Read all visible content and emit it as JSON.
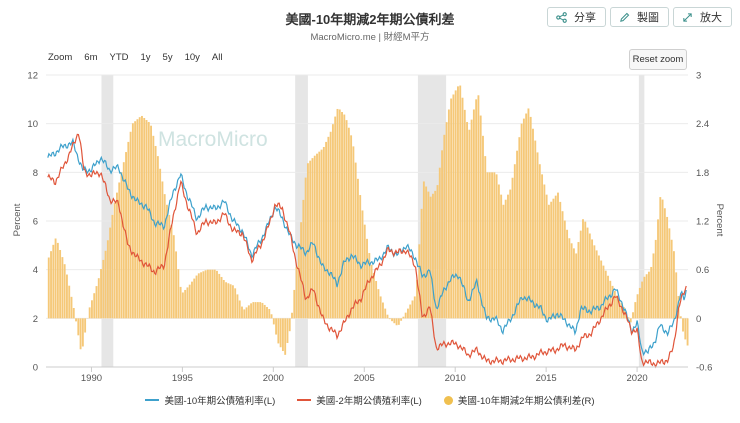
{
  "header": {
    "title": "美國-10年期減2年期公債利差",
    "subtitle": "MacroMicro.me | 財經M平方"
  },
  "toolbar": {
    "share_label": "分享",
    "draw_label": "製圖",
    "zoom_label": "放大"
  },
  "zoom": {
    "label": "Zoom",
    "options": [
      "6m",
      "YTD",
      "1y",
      "5y",
      "10y",
      "All"
    ],
    "reset_label": "Reset zoom"
  },
  "watermark": "MacroMicro",
  "colors": {
    "ten_year": "#3ea1cc",
    "two_year": "#e0553a",
    "spread": "#f5c878",
    "recession": "#e6e6e6"
  },
  "legend": {
    "ten_year": "美國-10年期公債殖利率(L)",
    "two_year": "美國-2年期公債殖利率(L)",
    "spread": "美國-10年期減2年期公債利差(R)"
  },
  "chart_data": {
    "type": "line",
    "xlim": [
      1987.5,
      2022.8
    ],
    "ylim_left": [
      0,
      12
    ],
    "ylim_right": [
      -0.6,
      3
    ],
    "ylabel_left": "Percent",
    "ylabel_right": "Percent",
    "x_ticks": [
      1990,
      1995,
      2000,
      2005,
      2010,
      2015,
      2020
    ],
    "y_ticks_left": [
      0,
      2,
      4,
      6,
      8,
      10,
      12
    ],
    "y_ticks_right": [
      -0.6,
      0,
      0.6,
      1.2,
      1.8,
      2.4,
      3
    ],
    "recessions": [
      [
        1990.55,
        1991.2
      ],
      [
        2001.2,
        2001.9
      ],
      [
        2007.95,
        2009.5
      ],
      [
        2020.1,
        2020.4
      ]
    ],
    "series": [
      {
        "name": "美國-10年期公債殖利率(L)",
        "axis": "left",
        "points": [
          [
            1987.6,
            8.6
          ],
          [
            1988.0,
            8.8
          ],
          [
            1988.5,
            9.1
          ],
          [
            1989.0,
            9.2
          ],
          [
            1989.5,
            8.1
          ],
          [
            1990.0,
            8.1
          ],
          [
            1990.5,
            8.6
          ],
          [
            1991.0,
            8.1
          ],
          [
            1991.5,
            8.2
          ],
          [
            1992.0,
            7.3
          ],
          [
            1992.5,
            6.8
          ],
          [
            1993.0,
            6.6
          ],
          [
            1993.5,
            5.9
          ],
          [
            1994.0,
            5.8
          ],
          [
            1994.5,
            7.2
          ],
          [
            1994.9,
            7.9
          ],
          [
            1995.3,
            7.0
          ],
          [
            1995.8,
            6.1
          ],
          [
            1996.3,
            6.6
          ],
          [
            1996.8,
            6.5
          ],
          [
            1997.3,
            6.8
          ],
          [
            1997.8,
            6.0
          ],
          [
            1998.3,
            5.6
          ],
          [
            1998.8,
            4.6
          ],
          [
            1999.3,
            5.2
          ],
          [
            1999.8,
            6.0
          ],
          [
            2000.1,
            6.6
          ],
          [
            2000.5,
            6.1
          ],
          [
            2000.9,
            5.4
          ],
          [
            2001.3,
            5.0
          ],
          [
            2001.8,
            4.7
          ],
          [
            2002.2,
            5.1
          ],
          [
            2002.7,
            4.1
          ],
          [
            2003.1,
            3.9
          ],
          [
            2003.5,
            3.4
          ],
          [
            2003.9,
            4.3
          ],
          [
            2004.3,
            4.6
          ],
          [
            2004.8,
            4.2
          ],
          [
            2005.3,
            4.3
          ],
          [
            2005.8,
            4.4
          ],
          [
            2006.3,
            4.9
          ],
          [
            2006.8,
            4.6
          ],
          [
            2007.3,
            5.0
          ],
          [
            2007.8,
            4.5
          ],
          [
            2008.2,
            3.7
          ],
          [
            2008.6,
            4.0
          ],
          [
            2008.95,
            2.4
          ],
          [
            2009.3,
            3.0
          ],
          [
            2009.7,
            3.6
          ],
          [
            2010.2,
            3.8
          ],
          [
            2010.7,
            2.7
          ],
          [
            2011.2,
            3.5
          ],
          [
            2011.7,
            2.0
          ],
          [
            2012.2,
            2.0
          ],
          [
            2012.6,
            1.5
          ],
          [
            2013.0,
            1.9
          ],
          [
            2013.7,
            2.9
          ],
          [
            2014.2,
            2.7
          ],
          [
            2014.7,
            2.4
          ],
          [
            2015.1,
            1.9
          ],
          [
            2015.6,
            2.2
          ],
          [
            2016.2,
            1.8
          ],
          [
            2016.6,
            1.4
          ],
          [
            2016.9,
            2.4
          ],
          [
            2017.5,
            2.3
          ],
          [
            2018.0,
            2.5
          ],
          [
            2018.8,
            3.2
          ],
          [
            2019.2,
            2.6
          ],
          [
            2019.7,
            1.5
          ],
          [
            2020.0,
            1.8
          ],
          [
            2020.25,
            0.7
          ],
          [
            2020.6,
            0.6
          ],
          [
            2021.0,
            1.1
          ],
          [
            2021.25,
            1.7
          ],
          [
            2021.7,
            1.4
          ],
          [
            2022.0,
            1.8
          ],
          [
            2022.4,
            3.0
          ],
          [
            2022.6,
            2.8
          ],
          [
            2022.75,
            3.3
          ]
        ]
      },
      {
        "name": "美國-2年期公債殖利率(L)",
        "axis": "left",
        "points": [
          [
            1987.6,
            7.8
          ],
          [
            1988.0,
            7.6
          ],
          [
            1988.5,
            8.3
          ],
          [
            1989.0,
            9.1
          ],
          [
            1989.3,
            9.7
          ],
          [
            1989.6,
            8.0
          ],
          [
            1990.0,
            7.9
          ],
          [
            1990.5,
            8.0
          ],
          [
            1991.0,
            6.9
          ],
          [
            1991.5,
            6.7
          ],
          [
            1992.0,
            5.0
          ],
          [
            1992.5,
            4.5
          ],
          [
            1993.0,
            4.2
          ],
          [
            1993.5,
            3.9
          ],
          [
            1994.0,
            4.2
          ],
          [
            1994.5,
            6.2
          ],
          [
            1994.9,
            7.6
          ],
          [
            1995.3,
            6.6
          ],
          [
            1995.8,
            5.5
          ],
          [
            1996.3,
            6.0
          ],
          [
            1996.8,
            5.9
          ],
          [
            1997.3,
            6.3
          ],
          [
            1997.8,
            5.6
          ],
          [
            1998.3,
            5.5
          ],
          [
            1998.8,
            4.4
          ],
          [
            1999.3,
            5.0
          ],
          [
            1999.8,
            5.9
          ],
          [
            2000.1,
            6.7
          ],
          [
            2000.5,
            6.5
          ],
          [
            2000.9,
            5.5
          ],
          [
            2001.3,
            4.2
          ],
          [
            2001.8,
            2.8
          ],
          [
            2002.2,
            3.2
          ],
          [
            2002.7,
            2.0
          ],
          [
            2003.1,
            1.6
          ],
          [
            2003.5,
            1.3
          ],
          [
            2003.9,
            1.8
          ],
          [
            2004.3,
            2.4
          ],
          [
            2004.8,
            2.8
          ],
          [
            2005.3,
            3.6
          ],
          [
            2005.8,
            4.1
          ],
          [
            2006.3,
            4.8
          ],
          [
            2006.8,
            4.7
          ],
          [
            2007.3,
            4.8
          ],
          [
            2007.8,
            4.2
          ],
          [
            2008.2,
            2.0
          ],
          [
            2008.6,
            2.5
          ],
          [
            2008.95,
            0.8
          ],
          [
            2009.3,
            0.9
          ],
          [
            2009.7,
            1.0
          ],
          [
            2010.2,
            0.9
          ],
          [
            2010.7,
            0.5
          ],
          [
            2011.2,
            0.7
          ],
          [
            2011.7,
            0.25
          ],
          [
            2012.5,
            0.25
          ],
          [
            2013.5,
            0.35
          ],
          [
            2014.2,
            0.4
          ],
          [
            2014.8,
            0.6
          ],
          [
            2015.5,
            0.7
          ],
          [
            2016.0,
            0.9
          ],
          [
            2016.6,
            0.7
          ],
          [
            2017.0,
            1.2
          ],
          [
            2017.5,
            1.4
          ],
          [
            2018.0,
            2.0
          ],
          [
            2018.8,
            2.9
          ],
          [
            2019.2,
            2.4
          ],
          [
            2019.7,
            1.5
          ],
          [
            2020.0,
            1.5
          ],
          [
            2020.25,
            0.25
          ],
          [
            2020.8,
            0.15
          ],
          [
            2021.2,
            0.15
          ],
          [
            2021.7,
            0.3
          ],
          [
            2022.0,
            0.8
          ],
          [
            2022.3,
            2.5
          ],
          [
            2022.6,
            3.1
          ],
          [
            2022.75,
            3.4
          ]
        ]
      },
      {
        "name": "美國-10年期減2年期公債利差(R)",
        "axis": "right",
        "type": "bar",
        "points": [
          [
            1987.6,
            0.75
          ],
          [
            1988.0,
            1.0
          ],
          [
            1988.5,
            0.65
          ],
          [
            1989.0,
            0.1
          ],
          [
            1989.4,
            -0.45
          ],
          [
            1989.8,
            0.1
          ],
          [
            1990.3,
            0.45
          ],
          [
            1990.8,
            0.9
          ],
          [
            1991.2,
            1.4
          ],
          [
            1991.7,
            1.9
          ],
          [
            1992.2,
            2.4
          ],
          [
            1992.7,
            2.5
          ],
          [
            1993.2,
            2.4
          ],
          [
            1993.6,
            2.0
          ],
          [
            1994.0,
            1.5
          ],
          [
            1994.5,
            1.0
          ],
          [
            1994.9,
            0.3
          ],
          [
            1995.3,
            0.4
          ],
          [
            1995.8,
            0.55
          ],
          [
            1996.3,
            0.6
          ],
          [
            1996.8,
            0.6
          ],
          [
            1997.3,
            0.45
          ],
          [
            1997.8,
            0.4
          ],
          [
            1998.3,
            0.1
          ],
          [
            1998.8,
            0.2
          ],
          [
            1999.3,
            0.2
          ],
          [
            1999.8,
            0.1
          ],
          [
            2000.2,
            -0.3
          ],
          [
            2000.6,
            -0.45
          ],
          [
            2000.9,
            -0.1
          ],
          [
            2001.3,
            0.8
          ],
          [
            2001.8,
            1.9
          ],
          [
            2002.2,
            2.0
          ],
          [
            2002.7,
            2.1
          ],
          [
            2003.1,
            2.3
          ],
          [
            2003.5,
            2.6
          ],
          [
            2003.9,
            2.5
          ],
          [
            2004.3,
            2.2
          ],
          [
            2004.8,
            1.4
          ],
          [
            2005.3,
            0.7
          ],
          [
            2005.8,
            0.3
          ],
          [
            2006.3,
            0.0
          ],
          [
            2006.8,
            -0.1
          ],
          [
            2007.3,
            0.1
          ],
          [
            2007.8,
            0.3
          ],
          [
            2008.2,
            1.7
          ],
          [
            2008.6,
            1.5
          ],
          [
            2008.95,
            1.6
          ],
          [
            2009.3,
            2.2
          ],
          [
            2009.7,
            2.7
          ],
          [
            2010.2,
            2.9
          ],
          [
            2010.7,
            2.3
          ],
          [
            2011.2,
            2.8
          ],
          [
            2011.7,
            1.8
          ],
          [
            2012.2,
            1.8
          ],
          [
            2012.6,
            1.4
          ],
          [
            2013.0,
            1.6
          ],
          [
            2013.6,
            2.4
          ],
          [
            2014.0,
            2.6
          ],
          [
            2014.6,
            1.9
          ],
          [
            2015.1,
            1.4
          ],
          [
            2015.6,
            1.55
          ],
          [
            2016.2,
            1.0
          ],
          [
            2016.6,
            0.8
          ],
          [
            2017.0,
            1.25
          ],
          [
            2017.6,
            0.9
          ],
          [
            2018.2,
            0.6
          ],
          [
            2018.8,
            0.3
          ],
          [
            2019.2,
            0.15
          ],
          [
            2019.6,
            -0.05
          ],
          [
            2019.9,
            0.25
          ],
          [
            2020.3,
            0.5
          ],
          [
            2020.7,
            0.6
          ],
          [
            2021.0,
            1.0
          ],
          [
            2021.25,
            1.55
          ],
          [
            2021.6,
            1.25
          ],
          [
            2022.0,
            0.8
          ],
          [
            2022.3,
            0.1
          ],
          [
            2022.5,
            -0.2
          ],
          [
            2022.75,
            -0.35
          ]
        ]
      }
    ]
  }
}
